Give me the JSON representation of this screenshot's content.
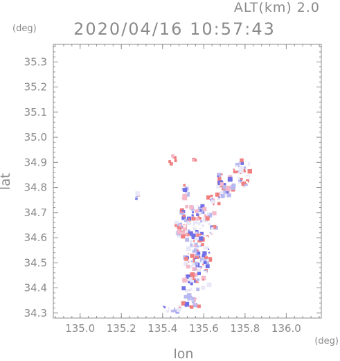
{
  "header": {
    "altitude_label": "ALT(km) 2.0",
    "timestamp": "2020/04/16 10:57:43"
  },
  "colors": {
    "axis": "#8c8c8c",
    "text": "#8a8a8a",
    "positive": "#f08080",
    "negative": "#6f6fe8",
    "neutral": "#e8e8f8"
  },
  "chart_data": {
    "type": "heatmap",
    "title": "2020/04/16 10:57:43",
    "subtitle": "ALT(km) 2.0",
    "xlabel": "lon",
    "ylabel": "lat",
    "xunit": "(deg)",
    "yunit": "(deg)",
    "xlim": [
      134.87,
      136.17
    ],
    "ylim": [
      34.28,
      35.37
    ],
    "xticks": [
      "135.0",
      "135.2",
      "135.4",
      "135.6",
      "135.8",
      "136.0"
    ],
    "xtick_values": [
      135.0,
      135.2,
      135.4,
      135.6,
      135.8,
      136.0
    ],
    "yticks": [
      "34.3",
      "34.4",
      "34.5",
      "34.6",
      "34.7",
      "34.8",
      "34.9",
      "35.0",
      "35.1",
      "35.2",
      "35.3"
    ],
    "ytick_values": [
      34.3,
      34.4,
      34.5,
      34.6,
      34.7,
      34.8,
      34.9,
      35.0,
      35.1,
      35.2,
      35.3
    ],
    "grid": false,
    "clusters": [
      {
        "lon": 135.58,
        "lat": 34.65,
        "rlon": 0.09,
        "rlat": 0.08,
        "n": 110
      },
      {
        "lon": 135.57,
        "lat": 34.52,
        "rlon": 0.06,
        "rlat": 0.1,
        "n": 100
      },
      {
        "lon": 135.5,
        "lat": 34.64,
        "rlon": 0.04,
        "rlat": 0.04,
        "n": 35
      },
      {
        "lon": 135.56,
        "lat": 34.42,
        "rlon": 0.07,
        "rlat": 0.04,
        "n": 35
      },
      {
        "lon": 135.53,
        "lat": 34.34,
        "rlon": 0.06,
        "rlat": 0.03,
        "n": 25
      },
      {
        "lon": 135.44,
        "lat": 34.32,
        "rlon": 0.05,
        "rlat": 0.02,
        "n": 14
      },
      {
        "lon": 135.7,
        "lat": 34.81,
        "rlon": 0.05,
        "rlat": 0.05,
        "n": 45
      },
      {
        "lon": 135.79,
        "lat": 34.85,
        "rlon": 0.04,
        "rlat": 0.06,
        "n": 40
      },
      {
        "lon": 135.65,
        "lat": 34.75,
        "rlon": 0.03,
        "rlat": 0.03,
        "n": 15
      },
      {
        "lon": 135.51,
        "lat": 34.78,
        "rlon": 0.02,
        "rlat": 0.03,
        "n": 10
      },
      {
        "lon": 135.45,
        "lat": 34.91,
        "rlon": 0.02,
        "rlat": 0.02,
        "n": 8
      },
      {
        "lon": 135.56,
        "lat": 34.91,
        "rlon": 0.01,
        "rlat": 0.01,
        "n": 4
      },
      {
        "lon": 135.28,
        "lat": 34.76,
        "rlon": 0.01,
        "rlat": 0.02,
        "n": 6
      },
      {
        "lon": 135.52,
        "lat": 34.71,
        "rlon": 0.03,
        "rlat": 0.02,
        "n": 12
      }
    ]
  }
}
